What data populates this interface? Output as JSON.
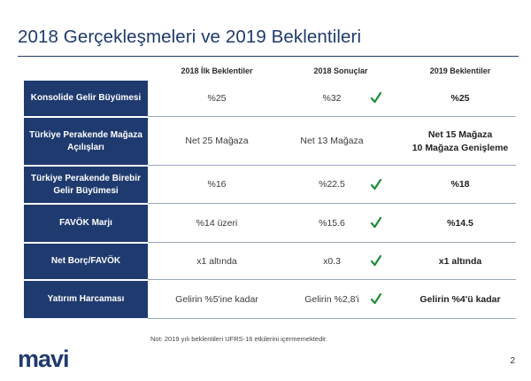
{
  "title": "2018 Gerçekleşmeleri ve 2019 Beklentileri",
  "columns": [
    "2018 İlk Beklentiler",
    "2018 Sonuçlar",
    "2019 Beklentiler"
  ],
  "rows": [
    {
      "label": "Konsolide Gelir Büyümesi",
      "initial": "%25",
      "result": "%32",
      "check": true,
      "outlook": "%25"
    },
    {
      "label": "Türkiye Perakende Mağaza Açılışları",
      "initial": "Net 25 Mağaza",
      "result": "Net 13 Mağaza",
      "check": false,
      "outlook": "Net 15 Mağaza\n10 Mağaza Genişleme"
    },
    {
      "label": "Türkiye Perakende Birebir Gelir Büyümesi",
      "initial": "%16",
      "result": "%22.5",
      "check": true,
      "outlook": "%18"
    },
    {
      "label": "FAVÖK Marjı",
      "initial": "%14 üzeri",
      "result": "%15.6",
      "check": true,
      "outlook": "%14.5"
    },
    {
      "label": "Net Borç/FAVÖK",
      "initial": "x1 altında",
      "result": "x0.3",
      "check": true,
      "outlook": "x1 altında"
    },
    {
      "label": "Yatırım Harcaması",
      "initial": "Gelirin %5'ine kadar",
      "result": "Gelirin %2,8'i",
      "check": true,
      "outlook": "Gelirin %4'ü kadar"
    }
  ],
  "footnote": "Not:  2019 yılı beklentileri UFRS-16 etkilerini içermemektedir.",
  "logo": "mavi",
  "page_number": "2",
  "colors": {
    "navy": "#1f3a6e",
    "check_green": "#1e8c3a"
  },
  "icons": {
    "check": "check-icon"
  }
}
